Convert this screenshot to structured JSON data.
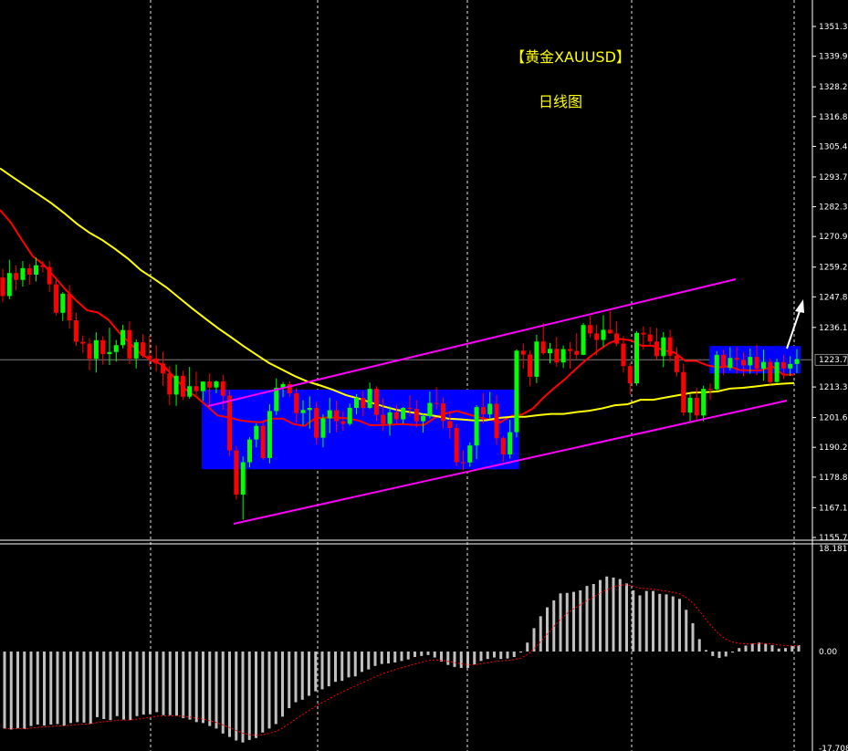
{
  "title": "【黄金XAUUSD】",
  "subtitle": "日线图",
  "colors": {
    "background": "#000000",
    "bull_candle": "#00ff00",
    "bear_candle": "#ff0000",
    "ma_fast": "#ff0000",
    "ma_slow": "#ffff00",
    "channel": "#ff00ff",
    "box": "#0000ff",
    "axis_text": "#ffffff",
    "histogram": "#c0c0c0",
    "signal": "#ff0000",
    "arrow": "#ffffff"
  },
  "price_axis": {
    "ticks": [
      "1351.30",
      "1339.90",
      "1328.20",
      "1316.80",
      "1305.40",
      "1293.70",
      "1282.30",
      "1270.90",
      "1259.20",
      "1247.80",
      "1236.10",
      "1213.30",
      "1201.60",
      "1190.20",
      "1178.80",
      "1167.10",
      "1155.70"
    ],
    "tick_values": [
      1351.3,
      1339.9,
      1328.2,
      1316.8,
      1305.4,
      1293.7,
      1282.3,
      1270.9,
      1259.2,
      1247.8,
      1236.1,
      1213.3,
      1201.6,
      1190.2,
      1178.8,
      1167.1,
      1155.7
    ],
    "current_price_label": "1223.74",
    "current_price": 1223.74
  },
  "macd_axis": {
    "ticks": [
      "18.181",
      "0.00",
      "-17.708"
    ],
    "tick_values": [
      18.181,
      0,
      -17.708
    ]
  },
  "chart_data": [
    {
      "type": "candlestick",
      "title": "【黄金XAUUSD】",
      "subtitle": "日线图",
      "ylim": [
        1155.7,
        1351.3
      ],
      "grid": "vertical dashed",
      "candles": [
        [
          1255.2,
          1258.5,
          1245.8,
          1248.1
        ],
        [
          1248.1,
          1262.0,
          1246.9,
          1256.9
        ],
        [
          1256.9,
          1259.8,
          1250.2,
          1254.3
        ],
        [
          1254.3,
          1261.5,
          1251.7,
          1258.8
        ],
        [
          1258.8,
          1260.4,
          1252.5,
          1256.3
        ],
        [
          1256.3,
          1262.9,
          1253.7,
          1259.9
        ],
        [
          1259.9,
          1261.6,
          1257.1,
          1259.2
        ],
        [
          1259.2,
          1261.5,
          1249.7,
          1252.6
        ],
        [
          1252.6,
          1254.8,
          1240.7,
          1241.7
        ],
        [
          1241.7,
          1249.6,
          1238.6,
          1249.0
        ],
        [
          1249.0,
          1252.3,
          1235.6,
          1238.8
        ],
        [
          1238.8,
          1241.7,
          1229.0,
          1230.6
        ],
        [
          1230.6,
          1233.0,
          1226.3,
          1229.9
        ],
        [
          1229.9,
          1232.0,
          1219.6,
          1224.1
        ],
        [
          1224.1,
          1234.2,
          1218.8,
          1231.2
        ],
        [
          1231.2,
          1232.7,
          1221.9,
          1225.9
        ],
        [
          1225.9,
          1236.0,
          1221.7,
          1226.7
        ],
        [
          1226.7,
          1231.3,
          1223.0,
          1229.3
        ],
        [
          1229.3,
          1237.1,
          1228.1,
          1235.1
        ],
        [
          1235.1,
          1238.4,
          1222.1,
          1224.2
        ],
        [
          1224.2,
          1231.5,
          1220.4,
          1230.4
        ],
        [
          1230.4,
          1233.5,
          1224.5,
          1225.3
        ],
        [
          1225.3,
          1232.9,
          1221.1,
          1224.2
        ],
        [
          1224.2,
          1229.3,
          1219.2,
          1222.3
        ],
        [
          1222.3,
          1226.8,
          1213.7,
          1218.5
        ],
        [
          1218.5,
          1221.4,
          1206.4,
          1210.4
        ],
        [
          1210.4,
          1221.9,
          1206.1,
          1217.6
        ],
        [
          1217.6,
          1219.5,
          1208.3,
          1209.6
        ],
        [
          1209.6,
          1221.0,
          1208.8,
          1213.6
        ],
        [
          1213.6,
          1219.2,
          1210.2,
          1211.7
        ],
        [
          1211.7,
          1215.5,
          1208.0,
          1215.4
        ],
        [
          1215.4,
          1218.5,
          1205.1,
          1213.1
        ],
        [
          1213.1,
          1215.8,
          1210.9,
          1215.4
        ],
        [
          1215.4,
          1218.0,
          1204.4,
          1210.0
        ],
        [
          1210.0,
          1212.2,
          1186.8,
          1189.0
        ],
        [
          1189.0,
          1190.7,
          1170.3,
          1172.1
        ],
        [
          1172.1,
          1186.7,
          1162.5,
          1184.5
        ],
        [
          1184.5,
          1194.1,
          1182.5,
          1193.2
        ],
        [
          1193.2,
          1199.3,
          1190.2,
          1198.4
        ],
        [
          1198.4,
          1200.1,
          1185.3,
          1186.1
        ],
        [
          1186.1,
          1206.7,
          1184.1,
          1204.1
        ],
        [
          1204.1,
          1216.6,
          1202.6,
          1213.0
        ],
        [
          1213.0,
          1215.2,
          1209.4,
          1214.4
        ],
        [
          1214.4,
          1215.5,
          1209.6,
          1210.9
        ],
        [
          1210.9,
          1212.8,
          1199.6,
          1203.3
        ],
        [
          1203.3,
          1208.2,
          1198.6,
          1204.5
        ],
        [
          1204.5,
          1209.7,
          1197.3,
          1205.3
        ],
        [
          1205.3,
          1207.6,
          1191.4,
          1193.9
        ],
        [
          1193.9,
          1202.8,
          1190.2,
          1201.3
        ],
        [
          1201.3,
          1209.2,
          1195.6,
          1204.4
        ],
        [
          1204.4,
          1208.0,
          1196.0,
          1200.2
        ],
        [
          1200.2,
          1204.1,
          1196.5,
          1199.2
        ],
        [
          1199.2,
          1206.9,
          1198.5,
          1205.3
        ],
        [
          1205.3,
          1210.5,
          1202.8,
          1209.1
        ],
        [
          1209.1,
          1211.8,
          1202.1,
          1205.3
        ],
        [
          1205.3,
          1215.0,
          1204.8,
          1212.6
        ],
        [
          1212.6,
          1213.6,
          1200.2,
          1202.6
        ],
        [
          1202.6,
          1209.0,
          1196.4,
          1199.2
        ],
        [
          1199.2,
          1205.8,
          1194.7,
          1203.6
        ],
        [
          1203.6,
          1206.4,
          1198.8,
          1200.9
        ],
        [
          1200.9,
          1205.6,
          1199.2,
          1205.3
        ],
        [
          1205.3,
          1210.1,
          1201.9,
          1204.9
        ],
        [
          1204.9,
          1208.3,
          1197.8,
          1200.2
        ],
        [
          1200.2,
          1203.2,
          1195.8,
          1202.2
        ],
        [
          1202.2,
          1211.5,
          1201.3,
          1207.2
        ],
        [
          1207.2,
          1213.2,
          1204.7,
          1207.0
        ],
        [
          1207.0,
          1209.3,
          1197.4,
          1200.3
        ],
        [
          1200.3,
          1204.2,
          1193.5,
          1197.6
        ],
        [
          1197.6,
          1199.1,
          1183.0,
          1184.5
        ],
        [
          1184.5,
          1189.0,
          1181.5,
          1184.4
        ],
        [
          1184.4,
          1192.1,
          1182.8,
          1190.9
        ],
        [
          1190.9,
          1206.3,
          1185.7,
          1205.6
        ],
        [
          1205.6,
          1211.0,
          1199.4,
          1202.8
        ],
        [
          1202.8,
          1211.4,
          1200.9,
          1206.9
        ],
        [
          1206.9,
          1210.2,
          1191.2,
          1193.7
        ],
        [
          1193.7,
          1194.5,
          1184.7,
          1187.5
        ],
        [
          1187.5,
          1200.8,
          1185.9,
          1196.0
        ],
        [
          1196.0,
          1227.7,
          1194.0,
          1227.2
        ],
        [
          1227.2,
          1229.9,
          1220.3,
          1225.7
        ],
        [
          1225.7,
          1227.4,
          1213.6,
          1217.2
        ],
        [
          1217.2,
          1233.3,
          1214.8,
          1230.7
        ],
        [
          1230.7,
          1237.8,
          1225.6,
          1226.2
        ],
        [
          1226.2,
          1230.2,
          1222.4,
          1227.9
        ],
        [
          1227.9,
          1232.5,
          1221.1,
          1222.7
        ],
        [
          1222.7,
          1229.2,
          1220.6,
          1227.8
        ],
        [
          1227.8,
          1230.5,
          1220.3,
          1227.1
        ],
        [
          1227.1,
          1233.9,
          1224.0,
          1225.6
        ],
        [
          1225.6,
          1237.8,
          1225.5,
          1237.0
        ],
        [
          1237.0,
          1240.6,
          1232.2,
          1233.8
        ],
        [
          1233.8,
          1237.2,
          1225.5,
          1231.3
        ],
        [
          1231.3,
          1240.8,
          1228.6,
          1235.2
        ],
        [
          1235.2,
          1242.3,
          1233.7,
          1233.8
        ],
        [
          1233.8,
          1238.5,
          1228.9,
          1229.9
        ],
        [
          1229.9,
          1232.8,
          1218.8,
          1221.3
        ],
        [
          1221.3,
          1222.6,
          1210.4,
          1214.7
        ],
        [
          1214.7,
          1234.7,
          1213.8,
          1234.0
        ],
        [
          1234.0,
          1236.5,
          1227.6,
          1233.4
        ],
        [
          1233.4,
          1236.3,
          1228.8,
          1230.7
        ],
        [
          1230.7,
          1235.9,
          1223.8,
          1225.1
        ],
        [
          1225.1,
          1234.3,
          1220.9,
          1232.3
        ],
        [
          1232.3,
          1235.2,
          1222.9,
          1225.3
        ],
        [
          1225.3,
          1228.5,
          1217.3,
          1219.0
        ],
        [
          1219.0,
          1222.2,
          1202.3,
          1203.5
        ],
        [
          1203.5,
          1210.5,
          1200.2,
          1209.2
        ],
        [
          1209.2,
          1212.8,
          1200.9,
          1202.4
        ],
        [
          1202.4,
          1213.8,
          1200.1,
          1212.6
        ],
        [
          1212.6,
          1214.6,
          1208.4,
          1212.4
        ],
        [
          1212.4,
          1227.1,
          1211.8,
          1225.6
        ],
        [
          1225.6,
          1227.5,
          1217.9,
          1220.6
        ],
        [
          1220.6,
          1228.5,
          1219.6,
          1224.4
        ],
        [
          1224.4,
          1228.6,
          1218.4,
          1223.7
        ],
        [
          1223.7,
          1226.7,
          1217.4,
          1221.6
        ],
        [
          1221.6,
          1228.0,
          1218.4,
          1224.8
        ],
        [
          1224.8,
          1229.5,
          1217.9,
          1220.3
        ],
        [
          1220.3,
          1227.6,
          1215.7,
          1222.9
        ],
        [
          1222.9,
          1224.2,
          1214.2,
          1215.2
        ],
        [
          1215.2,
          1224.1,
          1214.8,
          1222.8
        ],
        [
          1222.8,
          1225.5,
          1216.3,
          1220.4
        ],
        [
          1220.4,
          1225.1,
          1217.5,
          1222.1
        ],
        [
          1222.1,
          1227.8,
          1218.6,
          1224.0
        ]
      ],
      "moving_averages": [
        {
          "values": [
            1281.1,
            1276.2,
            1269.7,
            1263.4,
            1260.2,
            1255.5,
            1250.7,
            1246.4,
            1242.7,
            1241.8,
            1238.9,
            1233.9,
            1229.9,
            1225.8,
            1223.3,
            1221.7,
            1217.0,
            1212.6,
            1209.7,
            1206.1,
            1202.4,
            1201.7,
            1200.6,
            1200.0,
            1199.8,
            1201.2,
            1201.2,
            1199.1,
            1198.4,
            1201.4,
            1201.6,
            1201.6,
            1201.3,
            1200.4,
            1198.7,
            1198.7,
            1198.9,
            1199.1,
            1198.8,
            1198.8,
            1201.6,
            1203.2,
            1204.1,
            1202.9,
            1201.7,
            1200.9,
            1199.8,
            1202.2,
            1202.8,
            1205.1,
            1209.4,
            1213.1,
            1216.5,
            1220.5,
            1224.1,
            1227.3,
            1230.1,
            1231.7,
            1231.1,
            1229.1,
            1229.1,
            1227.3,
            1226.5,
            1223.3,
            1223.3,
            1221.6,
            1220.8,
            1221.2,
            1219.8,
            1219.6,
            1219.7,
            1221.2,
            1218.0,
            1218.0
          ]
        },
        {
          "values": [
            1297.0,
            1293.6,
            1290.3,
            1287.0,
            1283.7,
            1279.9,
            1275.8,
            1272.3,
            1269.5,
            1266.1,
            1262.4,
            1258.0,
            1254.8,
            1251.4,
            1247.4,
            1243.4,
            1239.6,
            1235.9,
            1232.5,
            1229.0,
            1225.7,
            1222.5,
            1220.0,
            1217.5,
            1215.4,
            1213.9,
            1212.2,
            1210.2,
            1208.9,
            1207.3,
            1205.8,
            1204.5,
            1203.7,
            1202.9,
            1202.2,
            1201.2,
            1200.9,
            1200.5,
            1200.6,
            1201.5,
            1201.9,
            1201.9,
            1202.5,
            1203.0,
            1203.0,
            1203.7,
            1204.2,
            1205.1,
            1206.3,
            1206.7,
            1208.4,
            1208.4,
            1209.3,
            1210.2,
            1211.1,
            1211.3,
            1211.6,
            1212.7,
            1213.0,
            1213.5,
            1214.1,
            1214.5,
            1214.8
          ]
        }
      ],
      "annotations": {
        "channel_upper": [
          [
            1214.9,
            34
          ],
          [
            1251.8,
            134
          ]
        ],
        "channel_lower": [
          [
            1160.7,
            34
          ],
          [
            1208.2,
            134
          ]
        ],
        "consolidation_box": {
          "candle_from": 28,
          "candle_to": 70,
          "low": 1185.0,
          "high": 1214.2
        },
        "recent_box": {
          "candle_from": 120,
          "candle_to": 130,
          "low": 1219.5,
          "high": 1230.3
        },
        "arrow_up": true
      }
    },
    {
      "type": "bar",
      "name": "MACD",
      "ylim": [
        -17.708,
        18.181
      ],
      "values": [
        -15.5,
        -15.7,
        -15.4,
        -15.6,
        -15.0,
        -14.7,
        -14.9,
        -14.7,
        -14.6,
        -14.9,
        -14.4,
        -14.2,
        -14.3,
        -14.5,
        -13.2,
        -13.6,
        -13.8,
        -13.0,
        -13.7,
        -13.8,
        -13.0,
        -12.7,
        -12.6,
        -12.2,
        -12.8,
        -12.8,
        -12.9,
        -13.4,
        -13.7,
        -14.2,
        -14.4,
        -15.0,
        -15.5,
        -16.5,
        -17.2,
        -17.9,
        -18.3,
        -17.8,
        -17.4,
        -16.3,
        -15.5,
        -14.6,
        -13.1,
        -11.4,
        -10.2,
        -9.7,
        -8.9,
        -8.0,
        -7.6,
        -7.0,
        -6.1,
        -5.9,
        -5.2,
        -5.0,
        -4.1,
        -3.6,
        -2.9,
        -2.5,
        -2.4,
        -2.2,
        -1.9,
        -1.6,
        -1.1,
        -0.9,
        -0.7,
        -1.2,
        -2.0,
        -2.7,
        -3.1,
        -3.3,
        -3.3,
        -2.6,
        -1.9,
        -1.5,
        -1.2,
        -1.5,
        -1.4,
        -1.1,
        -0.2,
        1.8,
        4.7,
        7.1,
        8.9,
        10.3,
        11.7,
        11.8,
        12.0,
        12.3,
        13.2,
        13.6,
        14.4,
        15.1,
        14.9,
        14.6,
        13.7,
        12.3,
        11.3,
        12.2,
        12.2,
        11.6,
        11.5,
        11.1,
        10.6,
        8.4,
        5.7,
        2.5,
        0.3,
        -0.9,
        -1.3,
        -1.0,
        -0.2,
        0.7,
        1.2,
        1.6,
        1.8,
        1.6,
        1.3,
        0.6,
        0.7,
        1.1,
        1.3
      ]
    }
  ]
}
